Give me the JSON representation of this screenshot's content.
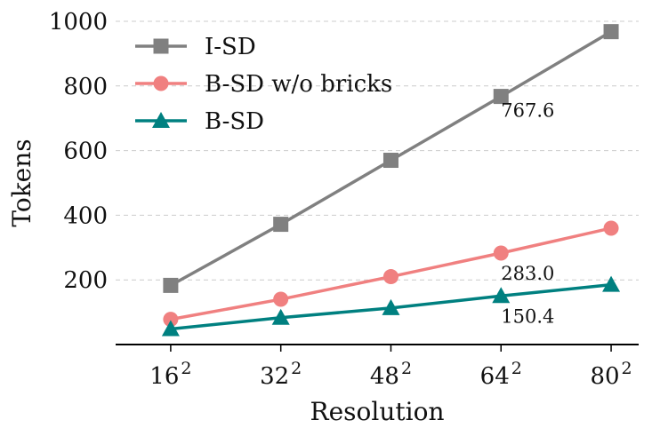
{
  "chart_data": {
    "type": "line",
    "x": [
      16,
      32,
      48,
      64,
      80
    ],
    "x_tick_labels": [
      {
        "base": "16",
        "exp": "2"
      },
      {
        "base": "32",
        "exp": "2"
      },
      {
        "base": "48",
        "exp": "2"
      },
      {
        "base": "64",
        "exp": "2"
      },
      {
        "base": "80",
        "exp": "2"
      }
    ],
    "xlabel": "Resolution",
    "ylabel": "Tokens",
    "ylim": [
      0,
      1000
    ],
    "y_ticks": [
      200,
      400,
      600,
      800,
      1000
    ],
    "grid": "horizontal dashed",
    "legend_position": "top-left",
    "series": [
      {
        "name": "I-SD",
        "color": "#808080",
        "marker": "square",
        "values": [
          183,
          372,
          570,
          767.6,
          968
        ]
      },
      {
        "name": "B-SD w/o bricks",
        "color": "#f08080",
        "marker": "circle",
        "values": [
          78,
          140,
          210,
          283.0,
          360
        ]
      },
      {
        "name": "B-SD",
        "color": "#008080",
        "marker": "triangle",
        "values": [
          48,
          83,
          113,
          150.4,
          185
        ]
      }
    ],
    "annotations": [
      {
        "text": "767.6",
        "x": 64,
        "y": 767.6
      },
      {
        "text": "283.0",
        "x": 64,
        "y": 283.0
      },
      {
        "text": "150.4",
        "x": 64,
        "y": 150.4
      }
    ]
  }
}
